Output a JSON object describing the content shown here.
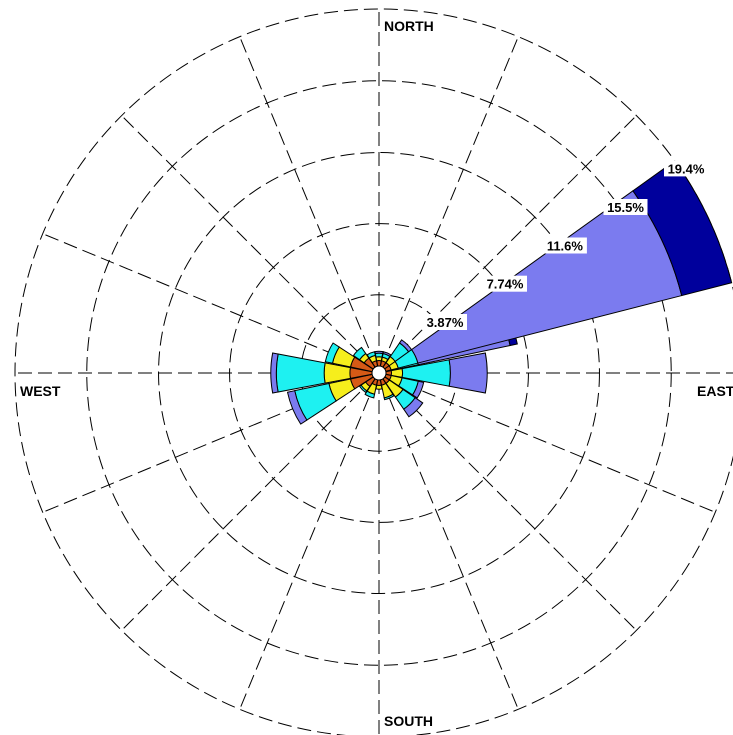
{
  "chart_data": {
    "type": "wind-rose",
    "directions": [
      "N",
      "NNE",
      "NE",
      "ENE",
      "E",
      "ESE",
      "SE",
      "SSE",
      "S",
      "SSW",
      "SW",
      "WSW",
      "W",
      "WNW",
      "NW",
      "NNW"
    ],
    "cardinal_labels": {
      "north": "NORTH",
      "east": "EAST",
      "south": "SOUTH",
      "west": "WEST"
    },
    "ring_values": [
      3.87,
      7.74,
      11.6,
      15.5,
      19.4
    ],
    "ring_labels": [
      "3.87%",
      "7.74%",
      "11.6%",
      "15.5%",
      "19.4%"
    ],
    "radial_max": 19.4,
    "classes": [
      {
        "color": "#d65a16"
      },
      {
        "color": "#f6ee1c"
      },
      {
        "color": "#1ef1f1"
      },
      {
        "color": "#7b7bef"
      },
      {
        "color": "#00009c"
      }
    ],
    "cumulative": [
      [
        0.3,
        0.5,
        0.7,
        0.8,
        0.8
      ],
      [
        0.3,
        0.5,
        0.7,
        0.8,
        0.8
      ],
      [
        0.3,
        0.7,
        1.6,
        1.8,
        1.8
      ],
      [
        0.3,
        0.7,
        1.8,
        6.9,
        7.3
      ],
      [
        0.3,
        0.9,
        3.5,
        5.5,
        5.5
      ],
      [
        0.3,
        0.9,
        1.8,
        2.1,
        2.1
      ],
      [
        0.3,
        1.2,
        2.0,
        2.5,
        2.5
      ],
      [
        0.3,
        1.0,
        1.1,
        1.1,
        1.1
      ],
      [
        0.3,
        0.5,
        0.5,
        0.5,
        0.5
      ],
      [
        0.3,
        0.8,
        1.0,
        1.0,
        1.0
      ],
      [
        0.5,
        0.8,
        0.9,
        0.9,
        0.9
      ],
      [
        1.2,
        2.4,
        4.3,
        4.7,
        4.7
      ],
      [
        1.2,
        2.6,
        5.2,
        5.5,
        5.5
      ],
      [
        1.2,
        2.2,
        2.6,
        2.6,
        2.6
      ],
      [
        0.6,
        0.9,
        1.3,
        1.3,
        1.3
      ],
      [
        0.3,
        0.6,
        0.8,
        0.8,
        0.8
      ]
    ],
    "extra_wedges": [
      {
        "center_deg": 65.0,
        "halfwidth_deg": 11.25,
        "cumulative": [
          0.3,
          0.7,
          1.8,
          16.6,
          19.4
        ]
      }
    ]
  }
}
